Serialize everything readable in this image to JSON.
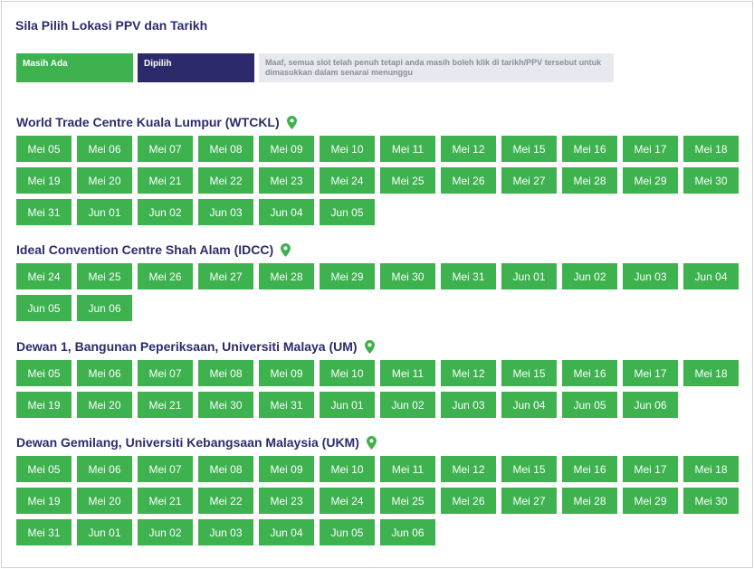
{
  "page_title": "Sila Pilih Lokasi PPV dan Tarikh",
  "legend": {
    "available": "Masih Ada",
    "selected": "Dipilih",
    "note": "Maaf, semua slot telah penuh tetapi anda masih boleh klik di tarikh/PPV tersebut untuk dimasukkan dalam senarai menunggu"
  },
  "colors": {
    "available": "#3db24f",
    "selected": "#2d2a6b",
    "note_bg": "#e7e9ee",
    "heading": "#2d2b6b"
  },
  "locations": [
    {
      "name": "World Trade Centre Kuala Lumpur (WTCKL)",
      "icon": "location-pin-icon",
      "dates": [
        "Mei 05",
        "Mei 06",
        "Mei 07",
        "Mei 08",
        "Mei 09",
        "Mei 10",
        "Mei 11",
        "Mei 12",
        "Mei 15",
        "Mei 16",
        "Mei 17",
        "Mei 18",
        "Mei 19",
        "Mei 20",
        "Mei 21",
        "Mei 22",
        "Mei 23",
        "Mei 24",
        "Mei 25",
        "Mei 26",
        "Mei 27",
        "Mei 28",
        "Mei 29",
        "Mei 30",
        "Mei 31",
        "Jun 01",
        "Jun 02",
        "Jun 03",
        "Jun 04",
        "Jun 05"
      ]
    },
    {
      "name": "Ideal Convention Centre Shah Alam (IDCC)",
      "icon": "location-pin-icon",
      "dates": [
        "Mei 24",
        "Mei 25",
        "Mei 26",
        "Mei 27",
        "Mei 28",
        "Mei 29",
        "Mei 30",
        "Mei 31",
        "Jun 01",
        "Jun 02",
        "Jun 03",
        "Jun 04",
        "Jun 05",
        "Jun 06"
      ]
    },
    {
      "name": "Dewan 1, Bangunan Peperiksaan, Universiti Malaya (UM)",
      "icon": "location-pin-icon",
      "dates": [
        "Mei 05",
        "Mei 06",
        "Mei 07",
        "Mei 08",
        "Mei 09",
        "Mei 10",
        "Mei 11",
        "Mei 12",
        "Mei 15",
        "Mei 16",
        "Mei 17",
        "Mei 18",
        "Mei 19",
        "Mei 20",
        "Mei 21",
        "Mei 30",
        "Mei 31",
        "Jun 01",
        "Jun 02",
        "Jun 03",
        "Jun 04",
        "Jun 05",
        "Jun 06"
      ]
    },
    {
      "name": "Dewan Gemilang, Universiti Kebangsaan Malaysia (UKM)",
      "icon": "location-pin-icon",
      "dates": [
        "Mei 05",
        "Mei 06",
        "Mei 07",
        "Mei 08",
        "Mei 09",
        "Mei 10",
        "Mei 11",
        "Mei 12",
        "Mei 15",
        "Mei 16",
        "Mei 17",
        "Mei 18",
        "Mei 19",
        "Mei 20",
        "Mei 21",
        "Mei 22",
        "Mei 23",
        "Mei 24",
        "Mei 25",
        "Mei 26",
        "Mei 27",
        "Mei 28",
        "Mei 29",
        "Mei 30",
        "Mei 31",
        "Jun 01",
        "Jun 02",
        "Jun 03",
        "Jun 04",
        "Jun 05",
        "Jun 06"
      ]
    }
  ]
}
